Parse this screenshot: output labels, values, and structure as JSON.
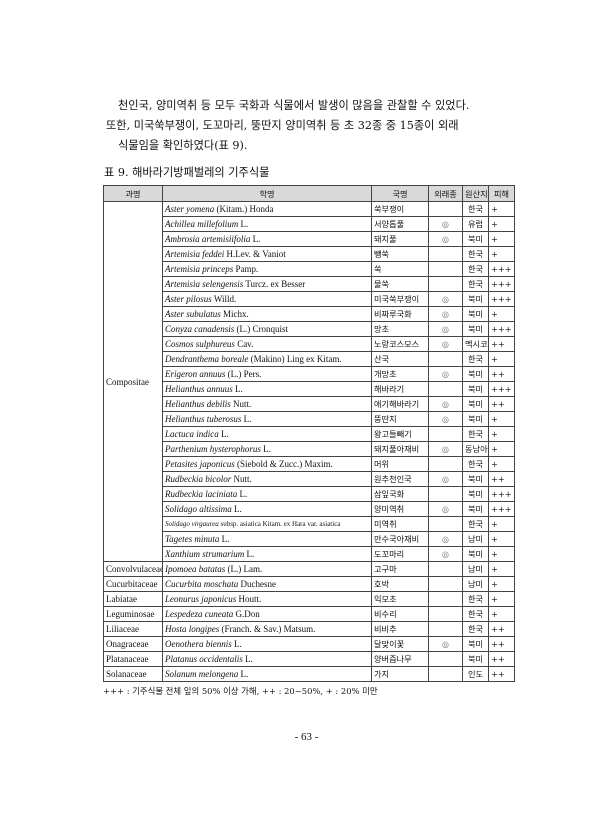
{
  "paragraph": [
    "천인국, 양미역취 등 모두 국화과 식물에서 발생이 많음을 관찰할 수 있었다.",
    "또한, 미국쑥부쟁이, 도꼬마리, 뚱딴지 양미역취 등 초 32종 중 15종이 외래",
    "식물임을 확인하였다(표 9)."
  ],
  "table": {
    "caption": "표 9. 해바라기방패벌레의 기주식물",
    "headers": [
      "과명",
      "학명",
      "국명",
      "외래종",
      "원산지",
      "피해"
    ],
    "exotic_mark": "◎",
    "rows": [
      {
        "family": "Compositae",
        "genus": "Aster yomena",
        "author": " (Kitam.) Honda",
        "korean": "쑥부쟁이",
        "exotic": "",
        "origin": "한국",
        "damage": "+"
      },
      {
        "genus": "Achillea millefolium",
        "author": " L.",
        "korean": "서양톱풀",
        "exotic": "◎",
        "origin": "유럽",
        "damage": "+"
      },
      {
        "genus": "Ambrosia artemisiifolia",
        "author": " L.",
        "korean": "돼지풀",
        "exotic": "◎",
        "origin": "북미",
        "damage": "+"
      },
      {
        "genus": "Artemisia feddei",
        "author": " H.Lev. & Vaniot",
        "korean": "뺑쑥",
        "exotic": "",
        "origin": "한국",
        "damage": "+"
      },
      {
        "genus": "Artemisia princeps",
        "author": " Pamp.",
        "korean": "쑥",
        "exotic": "",
        "origin": "한국",
        "damage": "+++"
      },
      {
        "genus": "Artemisia selengensis",
        "author": " Turcz. ex Besser",
        "korean": "물쑥",
        "exotic": "",
        "origin": "한국",
        "damage": "+++"
      },
      {
        "genus": "Aster pilosus",
        "author": " Willd.",
        "korean": "미국쑥부쟁이",
        "exotic": "◎",
        "origin": "북미",
        "damage": "+++"
      },
      {
        "genus": "Aster subulatus",
        "author": " Michx.",
        "korean": "비짜루국화",
        "exotic": "◎",
        "origin": "북미",
        "damage": "+"
      },
      {
        "genus": "Conyza canadensis",
        "author": " (L.) Cronquist",
        "korean": "망초",
        "exotic": "◎",
        "origin": "북미",
        "damage": "+++"
      },
      {
        "genus": "Cosmos sulphureus",
        "author": " Cav.",
        "korean": "노랑코스모스",
        "exotic": "◎",
        "origin": "멕시코",
        "damage": "++"
      },
      {
        "genus": "Dendranthema boreale",
        "author": " (Makino) Ling ex Kitam.",
        "korean": "산국",
        "exotic": "",
        "origin": "한국",
        "damage": "+"
      },
      {
        "genus": "Erigeron annuus",
        "author": " (L.) Pers.",
        "korean": "개망초",
        "exotic": "◎",
        "origin": "북미",
        "damage": "++"
      },
      {
        "genus": "Helianthus annuus",
        "author": " L.",
        "korean": "해바라기",
        "exotic": "",
        "origin": "북미",
        "damage": "+++"
      },
      {
        "genus": "Helianthus debilis",
        "author": " Nutt.",
        "korean": "애기해바라기",
        "exotic": "◎",
        "origin": "북미",
        "damage": "++"
      },
      {
        "genus": "Helianthus tuberosus",
        "author": " L.",
        "korean": "뚱딴지",
        "exotic": "◎",
        "origin": "북미",
        "damage": "+"
      },
      {
        "genus": "Lactuca indica",
        "author": " L.",
        "korean": "왕고들빼기",
        "exotic": "",
        "origin": "한국",
        "damage": "+"
      },
      {
        "genus": "Parthenium hysterophorus",
        "author": " L.",
        "korean": "돼지풀아재비",
        "exotic": "◎",
        "origin": "동남아",
        "damage": "+"
      },
      {
        "genus": "Petasites japonicus",
        "author": " (Siebold & Zucc.) Maxim.",
        "korean": "머위",
        "exotic": "",
        "origin": "한국",
        "damage": "+"
      },
      {
        "genus": "Rudbeckia bicolor",
        "author": " Nutt.",
        "korean": "원추천인국",
        "exotic": "◎",
        "origin": "북미",
        "damage": "++"
      },
      {
        "genus": "Rudbeckia laciniata",
        "author": " L.",
        "korean": "삼잎국화",
        "exotic": "",
        "origin": "북미",
        "damage": "+++"
      },
      {
        "genus": "Solidago altissima",
        "author": " L.",
        "korean": "양미역취",
        "exotic": "◎",
        "origin": "북미",
        "damage": "+++"
      },
      {
        "genus": "Solidago virgaurea",
        "author": " subsp. asiatica Kitam. ex Hara var. asiatica",
        "korean": "미역취",
        "exotic": "",
        "origin": "한국",
        "damage": "+"
      },
      {
        "genus": "Tagetes minuta",
        "author": " L.",
        "korean": "만수국아재비",
        "exotic": "◎",
        "origin": "남미",
        "damage": "+"
      },
      {
        "genus": "Xanthium strumarium",
        "author": " L.",
        "korean": "도꼬마리",
        "exotic": "◎",
        "origin": "북미",
        "damage": "+"
      },
      {
        "family": "Convolvulaceae",
        "genus": "Ipomoea batatas",
        "author": " (L.) Lam.",
        "korean": "고구마",
        "exotic": "",
        "origin": "남미",
        "damage": "+"
      },
      {
        "family": "Cucurbitaceae",
        "genus": "Cucurbita moschata",
        "author": " Duchesne",
        "korean": "호박",
        "exotic": "",
        "origin": "남미",
        "damage": "+"
      },
      {
        "family": "Labiatae",
        "genus": "Leonurus japonicus",
        "author": " Houtt.",
        "korean": "익모초",
        "exotic": "",
        "origin": "한국",
        "damage": "+"
      },
      {
        "family": "Leguminosae",
        "genus": "Lespedeza cuneata",
        "author": " G.Don",
        "korean": "비수리",
        "exotic": "",
        "origin": "한국",
        "damage": "+"
      },
      {
        "family": "Liliaceae",
        "genus": "Hosta longipes",
        "author": " (Franch. & Sav.) Matsum.",
        "korean": "비비추",
        "exotic": "",
        "origin": "한국",
        "damage": "++"
      },
      {
        "family": "Onagraceae",
        "genus": "Oenothera biennis",
        "author": " L.",
        "korean": "달맞이꽃",
        "exotic": "◎",
        "origin": "북미",
        "damage": "++"
      },
      {
        "family": "Platanaceae",
        "genus": "Platanus occidentalis",
        "author": " L.",
        "korean": "양버즘나무",
        "exotic": "",
        "origin": "북미",
        "damage": "++"
      },
      {
        "family": "Solanaceae",
        "genus": "Solanum melongena",
        "author": " L.",
        "korean": "가지",
        "exotic": "",
        "origin": "인도",
        "damage": "++"
      }
    ],
    "footnote": "+++ : 기주식물 전체 잎의 50% 이상 가해, ++ : 20~50%, + : 20% 미만"
  },
  "page_number": "- 63 -"
}
